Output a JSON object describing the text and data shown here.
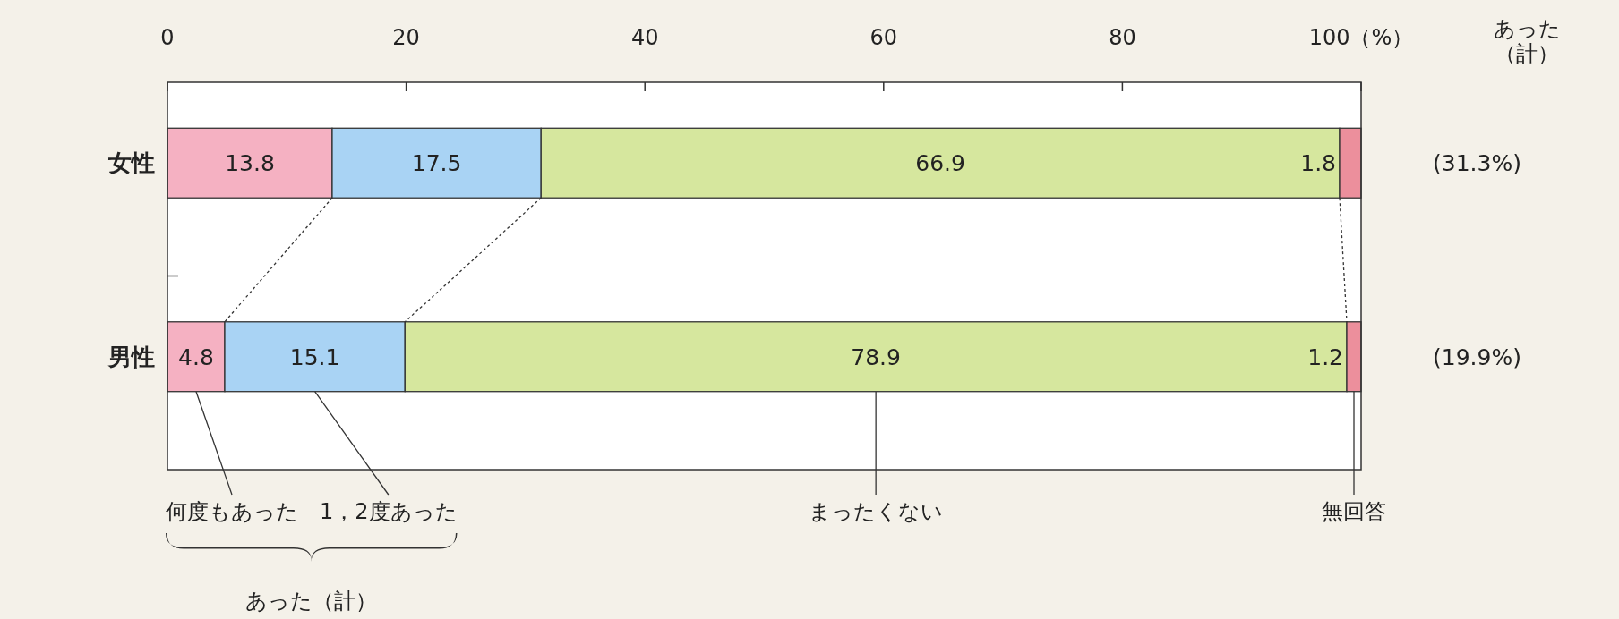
{
  "chart_data": {
    "type": "bar",
    "orientation": "horizontal",
    "stacked": true,
    "data_labels": true,
    "grid": false,
    "categories": [
      "女性",
      "男性"
    ],
    "xlim": [
      0,
      100
    ],
    "xticks": [
      0,
      20,
      40,
      60,
      80,
      {
        "value": 100,
        "label": "100（%）"
      }
    ],
    "series": [
      {
        "name": "何度もあった",
        "color": "#f5b1c2",
        "values": [
          13.8,
          4.8
        ]
      },
      {
        "name": "1，2度あった",
        "color": "#a9d3f4",
        "values": [
          17.5,
          15.1
        ]
      },
      {
        "name": "まったくない",
        "color": "#d6e79e",
        "values": [
          66.9,
          78.9
        ]
      },
      {
        "name": "無回答",
        "color": "#ec8f9c",
        "values": [
          1.8,
          1.2
        ]
      }
    ],
    "annotations": [
      "あった（計）",
      "(31.3%)",
      "(19.9%)",
      "あった（計）"
    ]
  }
}
